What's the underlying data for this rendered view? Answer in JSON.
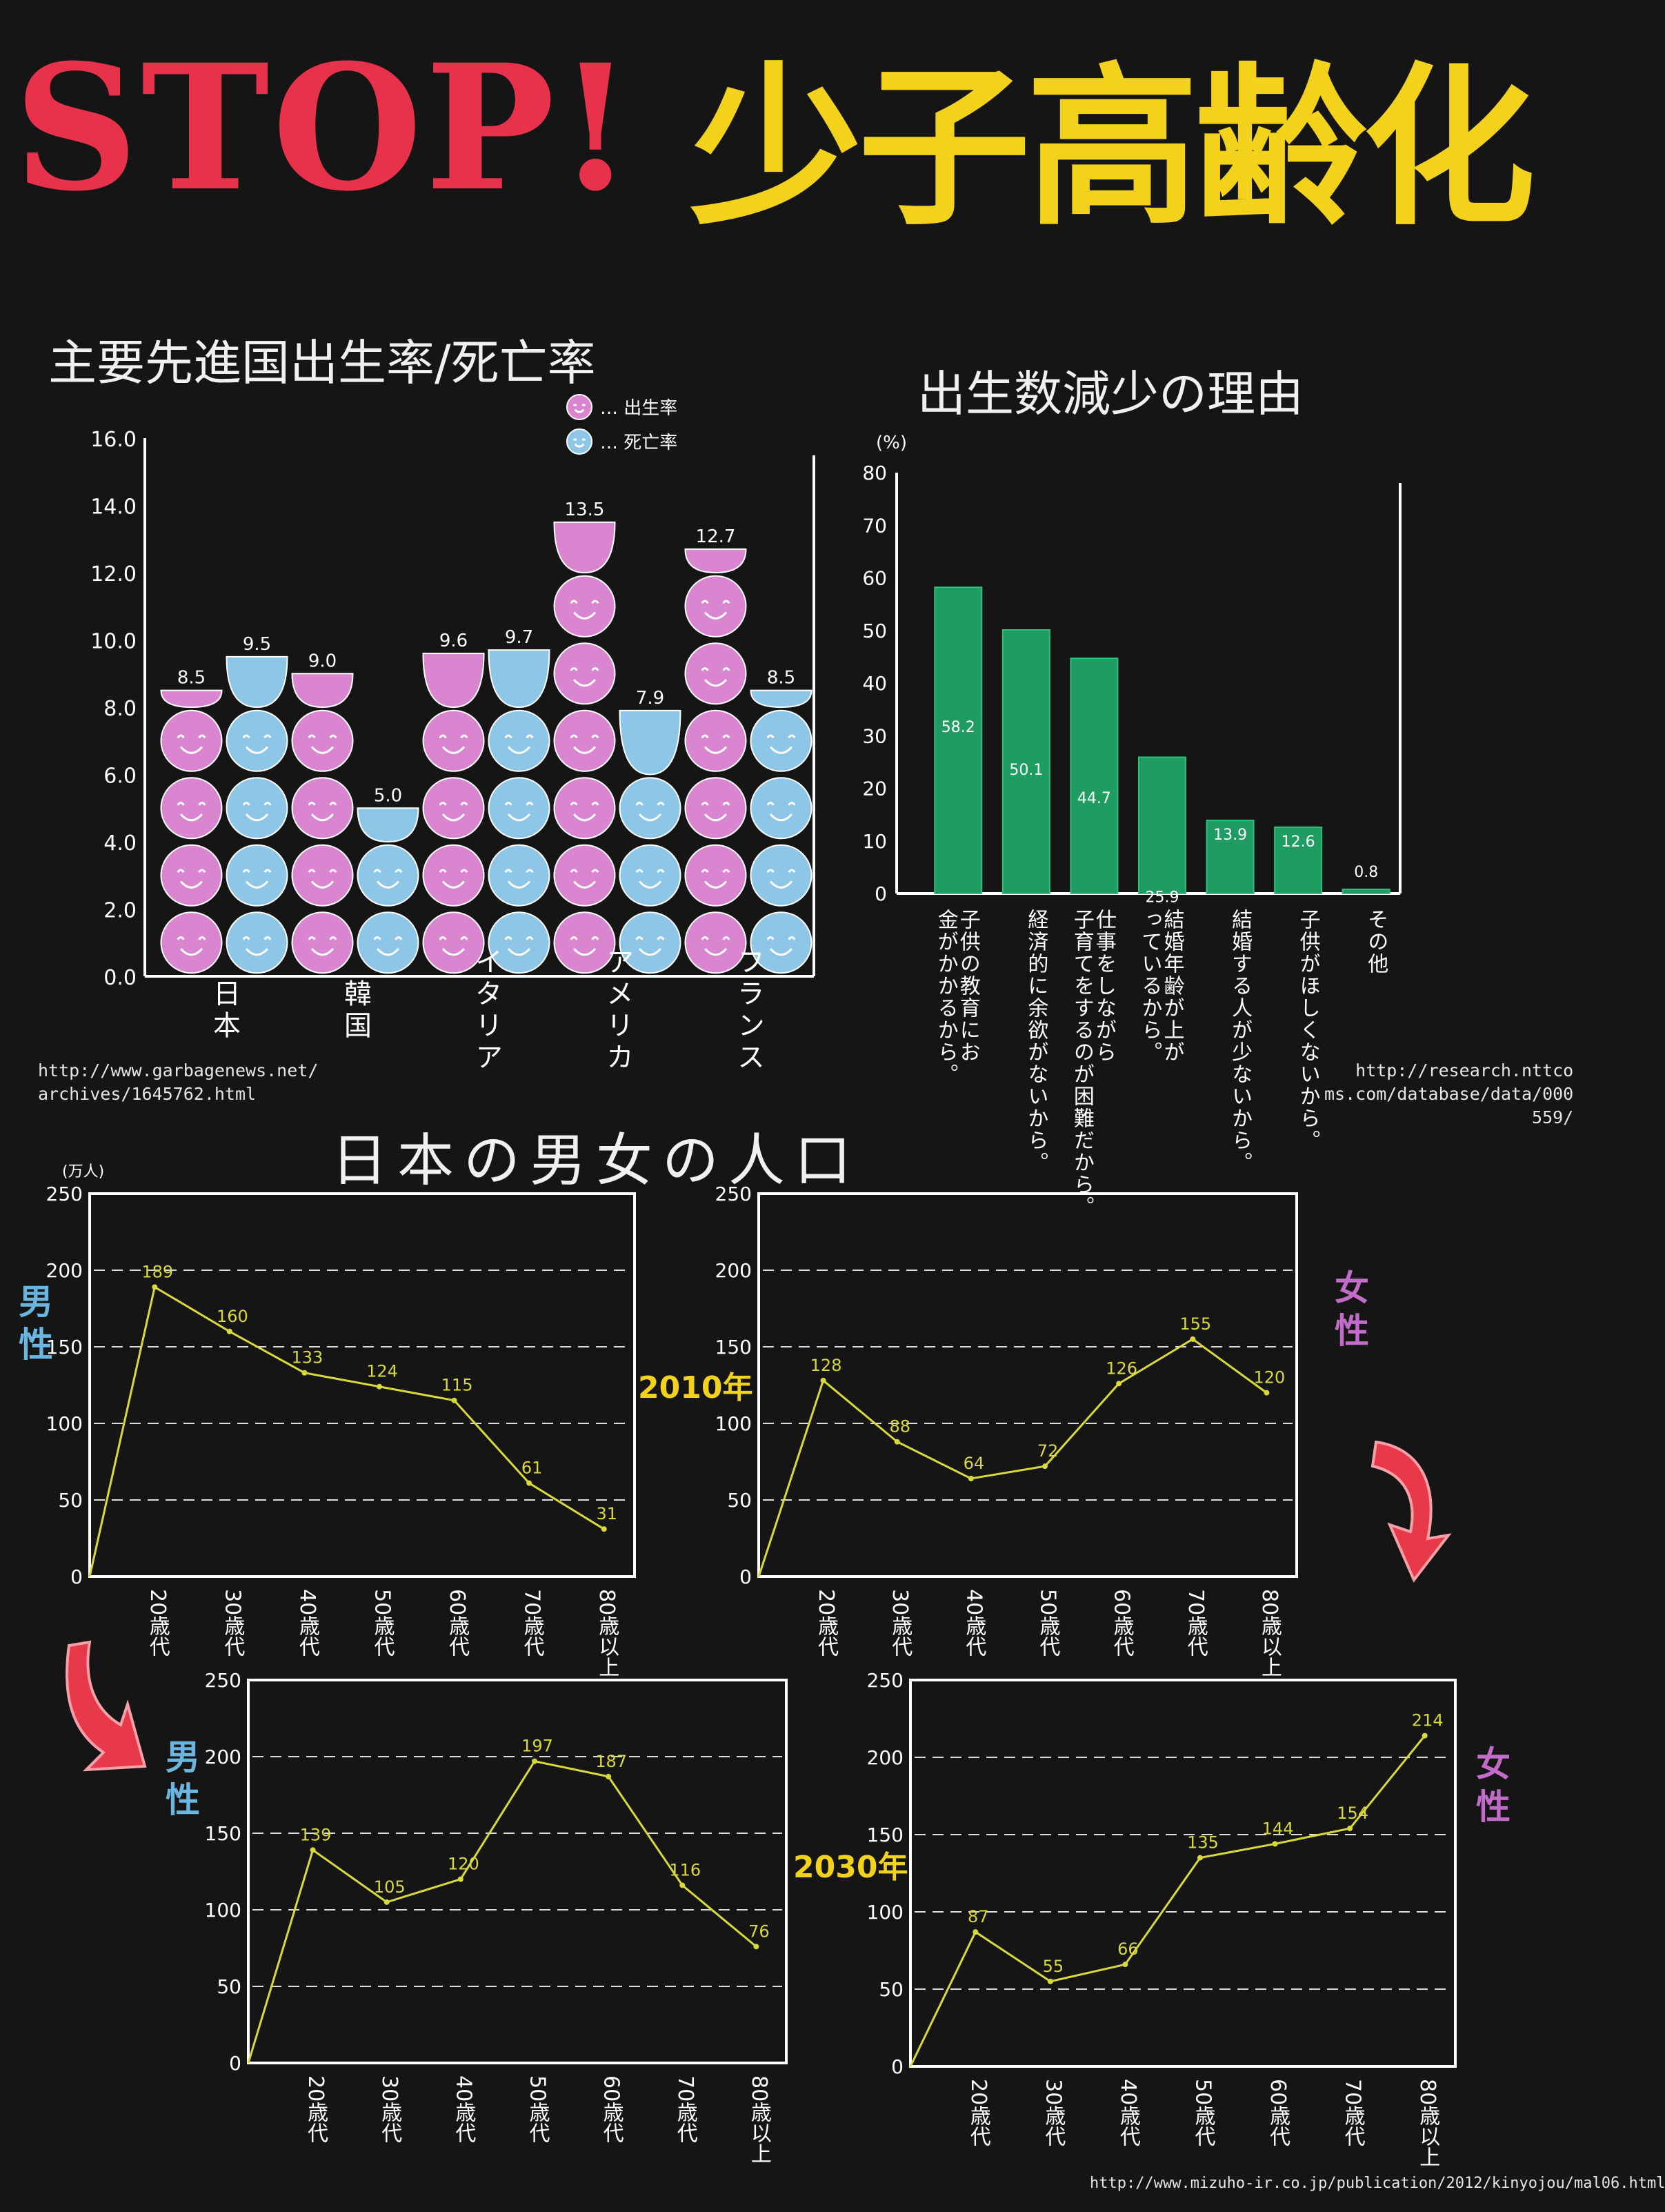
{
  "header": {
    "title_stop": "STOP!",
    "title_main": "少子高齢化"
  },
  "colors": {
    "birth": "#d985cf",
    "death": "#8dc6e6",
    "bar": "#1f9c62",
    "line": "#d9d93a",
    "title_red": "#e8314a",
    "title_yellow": "#f2d21a"
  },
  "section1": {
    "title": "主要先進国出生率/死亡率",
    "source": [
      "http://www.garbagenews.net/",
      "archives/1645762.html"
    ]
  },
  "section2": {
    "title": "出生数減少の理由",
    "source": [
      "http://research.nttco",
      "ms.com/database/data/000",
      "559/"
    ]
  },
  "section3": {
    "title": "日本の男女の人口",
    "source": "http://www.mizuho-ir.co.jp/publication/2012/kinyojou/mal06.html"
  },
  "labels": {
    "male": "男性",
    "female": "女性",
    "year_2010": "2010年",
    "year_2030": "2030年",
    "unit_man": "(万人)",
    "unit_pct": "(%)"
  },
  "chart_data": [
    {
      "type": "bar",
      "title": "主要先進国出生率/死亡率",
      "categories": [
        "日本",
        "韓国",
        "イタリア",
        "アメリカ",
        "フランス"
      ],
      "legend": {
        "placement": "top-right",
        "entries": [
          "出生率",
          "死亡率"
        ]
      },
      "series": [
        {
          "name": "出生率",
          "values": [
            8.5,
            9.0,
            9.6,
            13.5,
            12.7
          ]
        },
        {
          "name": "死亡率",
          "values": [
            9.5,
            5.0,
            9.7,
            7.9,
            8.5
          ]
        }
      ],
      "ylim": [
        0,
        16
      ],
      "yticks": [
        "0.0",
        "2.0",
        "4.0",
        "6.0",
        "8.0",
        "10.0",
        "12.0",
        "14.0",
        "16.0"
      ]
    },
    {
      "type": "bar",
      "title": "出生数減少の理由",
      "ylabel": "(%)",
      "ylim": [
        0,
        80
      ],
      "yticks": [
        "0",
        "10",
        "20",
        "30",
        "40",
        "50",
        "60",
        "70",
        "80"
      ],
      "categories": [
        "子供の教育にお金がかかるから。",
        "経済的に余欲がないから。",
        "仕事をしながら子育てをするのが困難だから。",
        "結婚年齢が上がっているから。",
        "結婚する人が少ないから。",
        "子供がほしくないから。",
        "その他"
      ],
      "values": [
        58.2,
        50.1,
        44.7,
        25.9,
        13.9,
        12.6,
        0.8
      ]
    },
    {
      "type": "line",
      "name": "2010年 男性",
      "ylabel": "(万人)",
      "ylim": [
        0,
        250
      ],
      "yticks": [
        "0",
        "50",
        "100",
        "150",
        "200",
        "250"
      ],
      "categories": [
        "20歳代",
        "30歳代",
        "40歳代",
        "50歳代",
        "60歳代",
        "70歳代",
        "80歳以上"
      ],
      "values": [
        189,
        160,
        133,
        124,
        115,
        61,
        31
      ],
      "grid": true
    },
    {
      "type": "line",
      "name": "2010年 女性",
      "ylim": [
        0,
        250
      ],
      "yticks": [
        "0",
        "50",
        "100",
        "150",
        "200",
        "250"
      ],
      "categories": [
        "20歳代",
        "30歳代",
        "40歳代",
        "50歳代",
        "60歳代",
        "70歳代",
        "80歳以上"
      ],
      "values": [
        128,
        88,
        64,
        72,
        126,
        155,
        120
      ],
      "grid": true
    },
    {
      "type": "line",
      "name": "2030年 男性",
      "ylim": [
        0,
        250
      ],
      "yticks": [
        "0",
        "50",
        "100",
        "150",
        "200",
        "250"
      ],
      "categories": [
        "20歳代",
        "30歳代",
        "40歳代",
        "50歳代",
        "60歳代",
        "70歳代",
        "80歳以上"
      ],
      "values": [
        139,
        105,
        120,
        197,
        187,
        116,
        76
      ],
      "grid": true
    },
    {
      "type": "line",
      "name": "2030年 女性",
      "ylim": [
        0,
        250
      ],
      "yticks": [
        "0",
        "50",
        "100",
        "150",
        "200",
        "250"
      ],
      "categories": [
        "20歳代",
        "30歳代",
        "40歳代",
        "50歳代",
        "60歳代",
        "70歳代",
        "80歳以上"
      ],
      "values": [
        87,
        55,
        66,
        135,
        144,
        154,
        214
      ],
      "grid": true
    }
  ]
}
